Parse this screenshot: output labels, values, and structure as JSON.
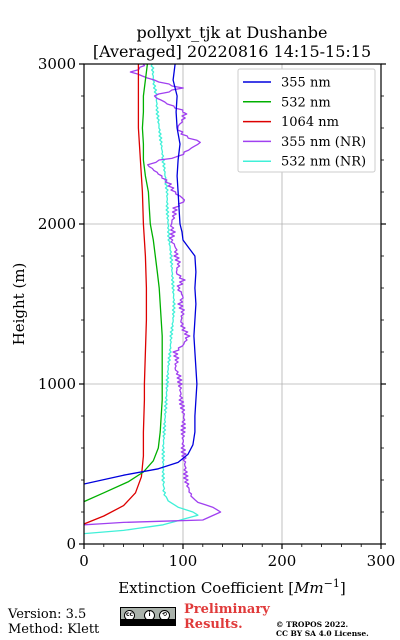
{
  "chart_data": {
    "type": "line",
    "title_line1": "pollyxt_tjk at Dushanbe",
    "title_line2": "[Averaged] 20220816 14:15-15:15",
    "xlabel": "Extinction Coefficient [",
    "xlabel_unit": "Mm",
    "xlabel_exp": "−1",
    "xlabel_end": "]",
    "ylabel": "Height (m)",
    "xlim": [
      0,
      300
    ],
    "ylim": [
      0,
      3000
    ],
    "xticks": [
      "0",
      "100",
      "200",
      "300"
    ],
    "yticks": [
      "0",
      "1000",
      "2000",
      "3000"
    ],
    "grid": true,
    "legend_position": "top-right",
    "series": [
      {
        "name": "355 nm",
        "color": "#0000dd",
        "kind": "smooth",
        "points": [
          [
            0,
            375
          ],
          [
            40,
            430
          ],
          [
            75,
            470
          ],
          [
            95,
            510
          ],
          [
            105,
            560
          ],
          [
            110,
            620
          ],
          [
            112,
            700
          ],
          [
            112,
            800
          ],
          [
            113,
            900
          ],
          [
            114,
            1000
          ],
          [
            113,
            1100
          ],
          [
            112,
            1200
          ],
          [
            111,
            1300
          ],
          [
            112,
            1400
          ],
          [
            113,
            1500
          ],
          [
            112,
            1600
          ],
          [
            113,
            1700
          ],
          [
            112,
            1800
          ],
          [
            106,
            1850
          ],
          [
            100,
            1900
          ],
          [
            99,
            1950
          ],
          [
            97,
            2000
          ],
          [
            96,
            2100
          ],
          [
            95,
            2200
          ],
          [
            94,
            2300
          ],
          [
            95,
            2400
          ],
          [
            97,
            2500
          ],
          [
            94,
            2600
          ],
          [
            93,
            2700
          ],
          [
            94,
            2800
          ],
          [
            90,
            2900
          ],
          [
            92,
            3000
          ]
        ]
      },
      {
        "name": "532 nm",
        "color": "#00b000",
        "kind": "smooth",
        "points": [
          [
            0,
            265
          ],
          [
            20,
            320
          ],
          [
            45,
            390
          ],
          [
            60,
            450
          ],
          [
            70,
            520
          ],
          [
            75,
            600
          ],
          [
            77,
            700
          ],
          [
            78,
            800
          ],
          [
            79,
            900
          ],
          [
            79,
            1000
          ],
          [
            79,
            1100
          ],
          [
            79,
            1200
          ],
          [
            79,
            1300
          ],
          [
            78,
            1400
          ],
          [
            77,
            1500
          ],
          [
            76,
            1600
          ],
          [
            74,
            1700
          ],
          [
            72,
            1800
          ],
          [
            70,
            1900
          ],
          [
            67,
            2000
          ],
          [
            66,
            2100
          ],
          [
            65,
            2200
          ],
          [
            62,
            2300
          ],
          [
            60,
            2400
          ],
          [
            60,
            2500
          ],
          [
            59,
            2600
          ],
          [
            60,
            2700
          ],
          [
            60,
            2800
          ],
          [
            62,
            2900
          ],
          [
            64,
            3000
          ]
        ]
      },
      {
        "name": "1064 nm",
        "color": "#dd0000",
        "kind": "smooth",
        "points": [
          [
            0,
            125
          ],
          [
            20,
            175
          ],
          [
            40,
            240
          ],
          [
            52,
            320
          ],
          [
            58,
            420
          ],
          [
            60,
            550
          ],
          [
            60,
            700
          ],
          [
            61,
            900
          ],
          [
            61,
            1000
          ],
          [
            62,
            1200
          ],
          [
            63,
            1400
          ],
          [
            63,
            1600
          ],
          [
            62,
            1800
          ],
          [
            60,
            2000
          ],
          [
            59,
            2200
          ],
          [
            57,
            2400
          ],
          [
            55,
            2600
          ],
          [
            55,
            2800
          ],
          [
            55,
            3000
          ]
        ]
      },
      {
        "name": "355 nm (NR)",
        "color": "#a040f0",
        "kind": "noisy",
        "points": [
          [
            0,
            120
          ],
          [
            40,
            135
          ],
          [
            120,
            150
          ],
          [
            138,
            200
          ],
          [
            130,
            230
          ],
          [
            115,
            260
          ],
          [
            108,
            300
          ],
          [
            103,
            400
          ],
          [
            102,
            500
          ],
          [
            100,
            600
          ],
          [
            100,
            700
          ],
          [
            101,
            800
          ],
          [
            98,
            900
          ],
          [
            97,
            1000
          ],
          [
            96,
            1050
          ],
          [
            92,
            1100
          ],
          [
            94,
            1150
          ],
          [
            92,
            1200
          ],
          [
            101,
            1250
          ],
          [
            105,
            1300
          ],
          [
            100,
            1350
          ],
          [
            98,
            1400
          ],
          [
            100,
            1450
          ],
          [
            97,
            1500
          ],
          [
            100,
            1550
          ],
          [
            95,
            1600
          ],
          [
            100,
            1650
          ],
          [
            93,
            1700
          ],
          [
            96,
            1750
          ],
          [
            93,
            1800
          ],
          [
            93,
            1850
          ],
          [
            88,
            1900
          ],
          [
            90,
            1950
          ],
          [
            88,
            2000
          ],
          [
            91,
            2050
          ],
          [
            92,
            2100
          ],
          [
            102,
            2150
          ],
          [
            91,
            2200
          ],
          [
            86,
            2250
          ],
          [
            78,
            2300
          ],
          [
            64,
            2370
          ],
          [
            78,
            2400
          ],
          [
            95,
            2420
          ],
          [
            102,
            2450
          ],
          [
            118,
            2510
          ],
          [
            102,
            2550
          ],
          [
            94,
            2600
          ],
          [
            100,
            2650
          ],
          [
            102,
            2700
          ],
          [
            85,
            2750
          ],
          [
            70,
            2800
          ],
          [
            98,
            2850
          ],
          [
            70,
            2900
          ],
          [
            48,
            2950
          ],
          [
            58,
            2980
          ],
          [
            60,
            3000
          ]
        ]
      },
      {
        "name": "532 nm (NR)",
        "color": "#40f0d8",
        "kind": "noisy",
        "points": [
          [
            0,
            65
          ],
          [
            40,
            85
          ],
          [
            80,
            120
          ],
          [
            115,
            180
          ],
          [
            110,
            200
          ],
          [
            95,
            230
          ],
          [
            85,
            270
          ],
          [
            81,
            320
          ],
          [
            80,
            400
          ],
          [
            80,
            500
          ],
          [
            80,
            600
          ],
          [
            81,
            700
          ],
          [
            82,
            800
          ],
          [
            83,
            900
          ],
          [
            84,
            1000
          ],
          [
            85,
            1100
          ],
          [
            87,
            1200
          ],
          [
            88,
            1300
          ],
          [
            90,
            1400
          ],
          [
            91,
            1500
          ],
          [
            90,
            1600
          ],
          [
            89,
            1700
          ],
          [
            88,
            1800
          ],
          [
            86,
            1900
          ],
          [
            85,
            2000
          ],
          [
            84,
            2100
          ],
          [
            84,
            2200
          ],
          [
            82,
            2300
          ],
          [
            80,
            2400
          ],
          [
            78,
            2500
          ],
          [
            76,
            2600
          ],
          [
            74,
            2700
          ],
          [
            73,
            2800
          ],
          [
            70,
            2900
          ],
          [
            69,
            3000
          ]
        ]
      }
    ]
  },
  "footer": {
    "version": "Version: 3.5",
    "method": "Method: Klett",
    "preliminary_line1": "Preliminary",
    "preliminary_line2": "Results.",
    "copyright_line1": "© TROPOS 2022.",
    "copyright_line2": "CC BY SA 4.0 License.",
    "license_badge": "CC BY SA"
  }
}
